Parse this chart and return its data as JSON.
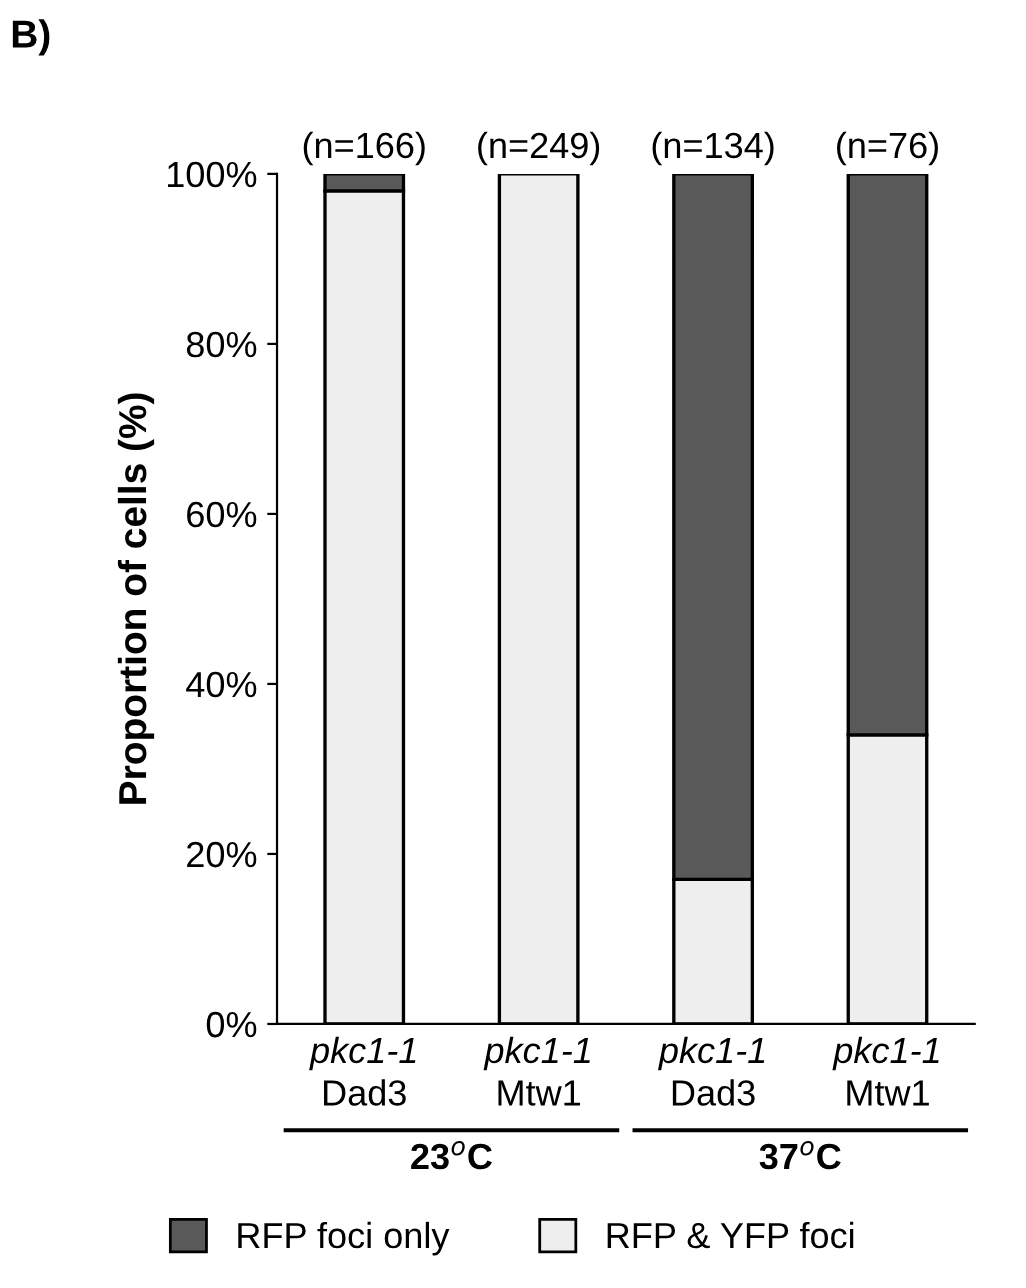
{
  "chart_data": {
    "type": "bar",
    "stacked": true,
    "title": "B)",
    "ylabel": "Proportion of cells (%)",
    "categories": [
      "pkc1-1\nDad3",
      "pkc1-1\nMtw1",
      "pkc1-1\nDad3",
      "pkc1-1\nMtw1"
    ],
    "series": [
      {
        "name": "RFP & YFP foci",
        "color": "#eeeeee",
        "values": [
          98,
          100,
          17,
          34
        ]
      },
      {
        "name": "RFP foci only",
        "color": "#595959",
        "values": [
          2,
          null,
          83,
          66
        ]
      }
    ],
    "ylim": [
      0,
      100
    ],
    "yticks": [
      {
        "value": 0,
        "label": "0%"
      },
      {
        "value": 20,
        "label": "20%"
      },
      {
        "value": 40,
        "label": "40%"
      },
      {
        "value": 60,
        "label": "60%"
      },
      {
        "value": 80,
        "label": "80%"
      },
      {
        "value": 100,
        "label": "100%"
      }
    ],
    "annotations": [
      "(n=166)",
      "(n=249)",
      "(n=134)",
      "(n=76)",
      "23$^{o}$C",
      "37$^{o}$C"
    ],
    "grid": false,
    "legend": "bottom"
  }
}
